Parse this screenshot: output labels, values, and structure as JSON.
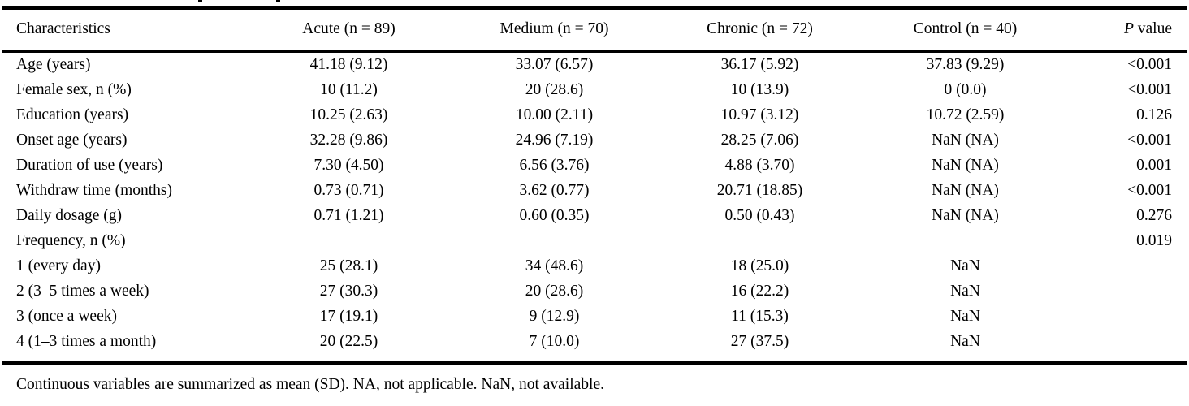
{
  "page": {
    "background": "#ffffff",
    "text_color": "#000000"
  },
  "table": {
    "header": {
      "characteristics": "Characteristics",
      "acute": "Acute (n = 89)",
      "medium": "Medium (n = 70)",
      "chronic": "Chronic (n = 72)",
      "control": "Control (n = 40)",
      "p_italic": "P",
      "p_rest": " value"
    },
    "rows": [
      {
        "label": "Age (years)",
        "acute": "41.18 (9.12)",
        "medium": "33.07 (6.57)",
        "chronic": "36.17 (5.92)",
        "control": "37.83 (9.29)",
        "p": "<0.001"
      },
      {
        "label": "Female sex, n (%)",
        "acute": "10 (11.2)",
        "medium": "20 (28.6)",
        "chronic": "10 (13.9)",
        "control": "0 (0.0)",
        "p": "<0.001"
      },
      {
        "label": "Education (years)",
        "acute": "10.25 (2.63)",
        "medium": "10.00 (2.11)",
        "chronic": "10.97 (3.12)",
        "control": "10.72 (2.59)",
        "p": "0.126"
      },
      {
        "label": "Onset age (years)",
        "acute": "32.28 (9.86)",
        "medium": "24.96 (7.19)",
        "chronic": "28.25 (7.06)",
        "control": "NaN (NA)",
        "p": "<0.001"
      },
      {
        "label": "Duration of use (years)",
        "acute": "7.30 (4.50)",
        "medium": "6.56 (3.76)",
        "chronic": "4.88 (3.70)",
        "control": "NaN (NA)",
        "p": "0.001"
      },
      {
        "label": "Withdraw time (months)",
        "acute": "0.73 (0.71)",
        "medium": "3.62 (0.77)",
        "chronic": "20.71 (18.85)",
        "control": "NaN (NA)",
        "p": "<0.001"
      },
      {
        "label": "Daily dosage (g)",
        "acute": "0.71 (1.21)",
        "medium": "0.60 (0.35)",
        "chronic": "0.50 (0.43)",
        "control": "NaN (NA)",
        "p": "0.276"
      },
      {
        "label": "Frequency, n (%)",
        "acute": "",
        "medium": "",
        "chronic": "",
        "control": "",
        "p": "0.019"
      },
      {
        "label": "1 (every day)",
        "acute": "25 (28.1)",
        "medium": "34 (48.6)",
        "chronic": "18 (25.0)",
        "control": "NaN",
        "p": ""
      },
      {
        "label": "2 (3–5 times a week)",
        "acute": "27 (30.3)",
        "medium": "20 (28.6)",
        "chronic": "16 (22.2)",
        "control": "NaN",
        "p": ""
      },
      {
        "label": "3 (once a week)",
        "acute": "17 (19.1)",
        "medium": "9 (12.9)",
        "chronic": "11 (15.3)",
        "control": "NaN",
        "p": ""
      },
      {
        "label": "4 (1–3 times a month)",
        "acute": "20 (22.5)",
        "medium": "7 (10.0)",
        "chronic": "27 (37.5)",
        "control": "NaN",
        "p": ""
      }
    ],
    "footnote": "Continuous variables are summarized as mean (SD). NA, not applicable. NaN, not available."
  }
}
